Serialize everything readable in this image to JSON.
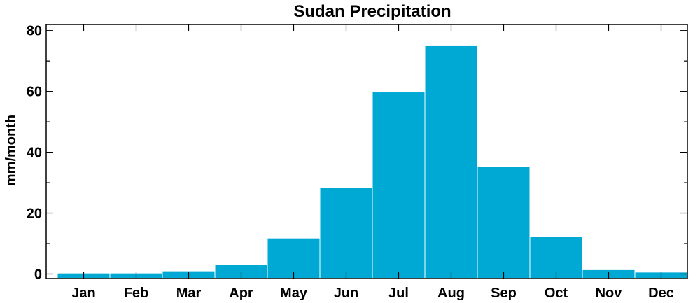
{
  "chart_data": {
    "type": "bar",
    "title": "Sudan Precipitation",
    "xlabel": "",
    "ylabel": "mm/month",
    "categories": [
      "Jan",
      "Feb",
      "Mar",
      "Apr",
      "May",
      "Jun",
      "Jul",
      "Aug",
      "Sep",
      "Oct",
      "Nov",
      "Dec"
    ],
    "values": [
      0.3,
      0.3,
      1.0,
      3.2,
      11.8,
      28.4,
      59.8,
      75.0,
      35.4,
      12.4,
      1.4,
      0.6
    ],
    "ylim": [
      -1.5,
      82
    ],
    "yticks": [
      0,
      20,
      40,
      60,
      80
    ],
    "ytick_labels": [
      "0",
      "20",
      "40",
      "60",
      "80"
    ],
    "grid": false,
    "bar_color": "#00a9d4"
  }
}
